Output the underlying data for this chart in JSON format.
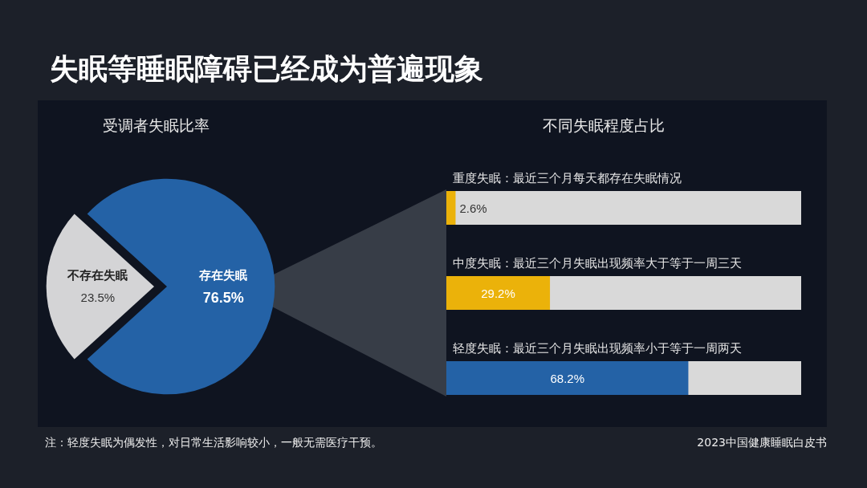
{
  "chart_data": [
    {
      "type": "pie",
      "title": "失眠等睡眠障碍已经成为普遍现象",
      "subtitle": "受调者失眠比率",
      "categories": [
        "不存在失眠",
        "存在失眠"
      ],
      "values": [
        23.5,
        76.5
      ],
      "colors": [
        "#d4d4d6",
        "#2462a6"
      ],
      "value_labels": [
        "23.5%",
        "76.5%"
      ],
      "legend": false
    },
    {
      "type": "bar",
      "orientation": "horizontal",
      "title": "不同失眠程度占比",
      "categories": [
        "重度失眠：最近三个月每天都存在失眠情况",
        "中度失眠：最近三个月失眠出现频率大于等于一周三天",
        "轻度失眠：最近三个月失眠出现频率小于等于一周两天"
      ],
      "values": [
        2.6,
        29.2,
        68.2
      ],
      "colors": [
        "#ebb20a",
        "#ebb20a",
        "#2462a6"
      ],
      "value_labels": [
        "2.6%",
        "29.2%",
        "68.2%"
      ],
      "xlim": [
        0,
        100
      ],
      "tick_labels": false,
      "annotations": [
        "注：轻度失眠为偶发性，对日常生活影响较小，一般无需医疗干预。",
        "2023中国健康睡眠白皮书"
      ]
    }
  ]
}
